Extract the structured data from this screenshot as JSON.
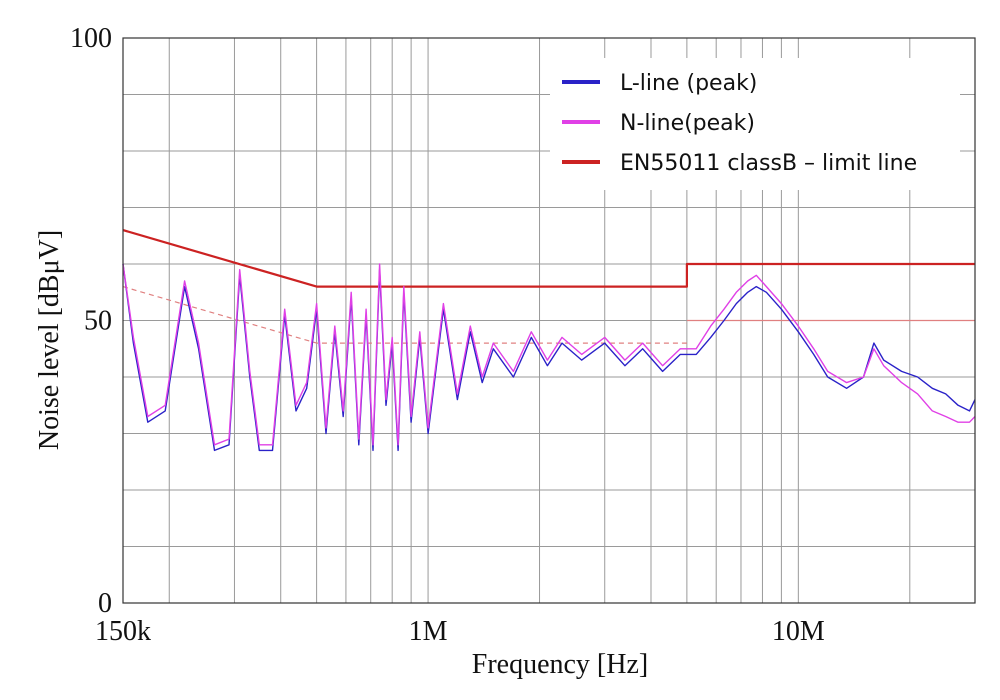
{
  "chart_data": {
    "type": "line",
    "title": "",
    "xlabel": "Frequency [Hz]",
    "ylabel": "Noise level [dBμV]",
    "x_scale": "log",
    "xlim": [
      150000,
      30000000
    ],
    "ylim": [
      0,
      100
    ],
    "x_tick_values": [
      150000,
      1000000,
      10000000
    ],
    "x_tick_labels": [
      "150k",
      "1M",
      "10M"
    ],
    "y_tick_values": [
      0,
      50,
      100
    ],
    "y_tick_labels": [
      "0",
      "50",
      "100"
    ],
    "grid": true,
    "legend_position": "top-right",
    "colors": {
      "l_line": "#2a22c8",
      "n_line": "#e040e6",
      "limit_line": "#cc2222",
      "limit_line_thin": "#e08080",
      "grid": "#9a9a9a"
    },
    "series": [
      {
        "name": "L-line (peak)",
        "color": "#2a22c8",
        "x": [
          150000,
          160000,
          175000,
          195000,
          220000,
          240000,
          265000,
          290000,
          310000,
          330000,
          350000,
          380000,
          410000,
          440000,
          470000,
          500000,
          530000,
          560000,
          590000,
          620000,
          650000,
          680000,
          710000,
          740000,
          770000,
          800000,
          830000,
          860000,
          900000,
          950000,
          1000000,
          1100000,
          1200000,
          1300000,
          1400000,
          1500000,
          1700000,
          1900000,
          2100000,
          2300000,
          2600000,
          3000000,
          3400000,
          3800000,
          4300000,
          4800000,
          5300000,
          5800000,
          6300000,
          6800000,
          7300000,
          7700000,
          8200000,
          9000000,
          10000000,
          11000000,
          12000000,
          13500000,
          15000000,
          16000000,
          17000000,
          19000000,
          21000000,
          23000000,
          25000000,
          27000000,
          29000000,
          30000000
        ],
        "values": [
          60,
          46,
          32,
          34,
          56,
          45,
          27,
          28,
          58,
          40,
          27,
          27,
          51,
          34,
          38,
          52,
          30,
          48,
          33,
          54,
          28,
          51,
          27,
          59,
          35,
          46,
          27,
          55,
          32,
          47,
          30,
          52,
          36,
          48,
          39,
          45,
          40,
          47,
          42,
          46,
          43,
          46,
          42,
          45,
          41,
          44,
          44,
          47,
          50,
          53,
          55,
          56,
          55,
          52,
          48,
          44,
          40,
          38,
          40,
          46,
          43,
          41,
          40,
          38,
          37,
          35,
          34,
          36
        ]
      },
      {
        "name": "N-line(peak)",
        "color": "#e040e6",
        "x": [
          150000,
          160000,
          175000,
          195000,
          220000,
          240000,
          265000,
          290000,
          310000,
          330000,
          350000,
          380000,
          410000,
          440000,
          470000,
          500000,
          530000,
          560000,
          590000,
          620000,
          650000,
          680000,
          710000,
          740000,
          770000,
          800000,
          830000,
          860000,
          900000,
          950000,
          1000000,
          1100000,
          1200000,
          1300000,
          1400000,
          1500000,
          1700000,
          1900000,
          2100000,
          2300000,
          2600000,
          3000000,
          3400000,
          3800000,
          4300000,
          4800000,
          5300000,
          5800000,
          6300000,
          6800000,
          7300000,
          7700000,
          8200000,
          9000000,
          10000000,
          11000000,
          12000000,
          13500000,
          15000000,
          16000000,
          17000000,
          19000000,
          21000000,
          23000000,
          25000000,
          27000000,
          29000000,
          30000000
        ],
        "values": [
          60,
          47,
          33,
          35,
          57,
          46,
          28,
          29,
          59,
          41,
          28,
          28,
          52,
          35,
          39,
          53,
          31,
          49,
          34,
          55,
          29,
          52,
          28,
          60,
          36,
          47,
          28,
          56,
          33,
          48,
          31,
          53,
          37,
          49,
          40,
          46,
          41,
          48,
          43,
          47,
          44,
          47,
          43,
          46,
          42,
          45,
          45,
          49,
          52,
          55,
          57,
          58,
          56,
          53,
          49,
          45,
          41,
          39,
          40,
          45,
          42,
          39,
          37,
          34,
          33,
          32,
          32,
          33
        ]
      },
      {
        "name": "EN55011 classB – limit line",
        "color": "#cc2222",
        "x": [
          150000,
          500000,
          500000,
          5000000,
          5000000,
          30000000
        ],
        "values": [
          66,
          56,
          56,
          56,
          60,
          60
        ]
      },
      {
        "name": "",
        "color": "#e08080",
        "dashed": true,
        "x": [
          150000,
          500000,
          5000000
        ],
        "values": [
          56,
          46,
          46
        ]
      },
      {
        "name": "",
        "color": "#e08080",
        "x": [
          5000000,
          30000000
        ],
        "values": [
          50,
          50
        ]
      }
    ],
    "legend": [
      {
        "label": "L-line (peak)",
        "color": "#2a22c8"
      },
      {
        "label": "N-line(peak)",
        "color": "#e040e6"
      },
      {
        "label": "EN55011 classB – limit line",
        "color": "#cc2222"
      }
    ]
  }
}
